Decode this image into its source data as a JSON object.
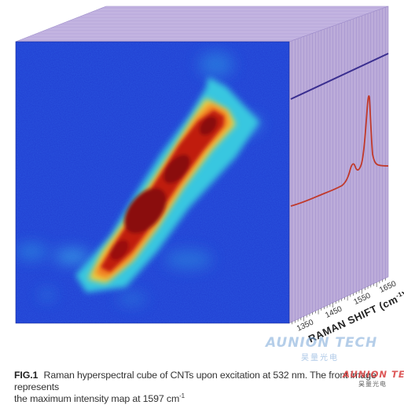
{
  "spectrum_axis": {
    "label": "RAMAN SHIFT (cm",
    "label_unit_sup": "-1",
    "label_close": ")",
    "ticks": [
      "1350",
      "1450",
      "1550",
      "1650"
    ]
  },
  "caption": {
    "fig_label": "FIG.1",
    "text_line1": "Raman hyperspectral cube of CNTs upon excitation at 532 nm. The front image represents",
    "text_line2": "the maximum intensity map at 1597 cm",
    "text_line2_sup": "-1"
  },
  "watermarks": {
    "top_main": "AUNION TECH",
    "top_sub": "昊量光电",
    "bottom_main": "AUNION TECH",
    "bottom_sub": "昊量光电"
  },
  "colors": {
    "map_background": "#1f3bd0",
    "cube_side": "#b8a8d8",
    "cube_top": "#c8b8e2",
    "cube_lines": "#8f7cc4",
    "spectrum_line": "#c0392b",
    "top_trace": "#3a2e8f"
  }
}
